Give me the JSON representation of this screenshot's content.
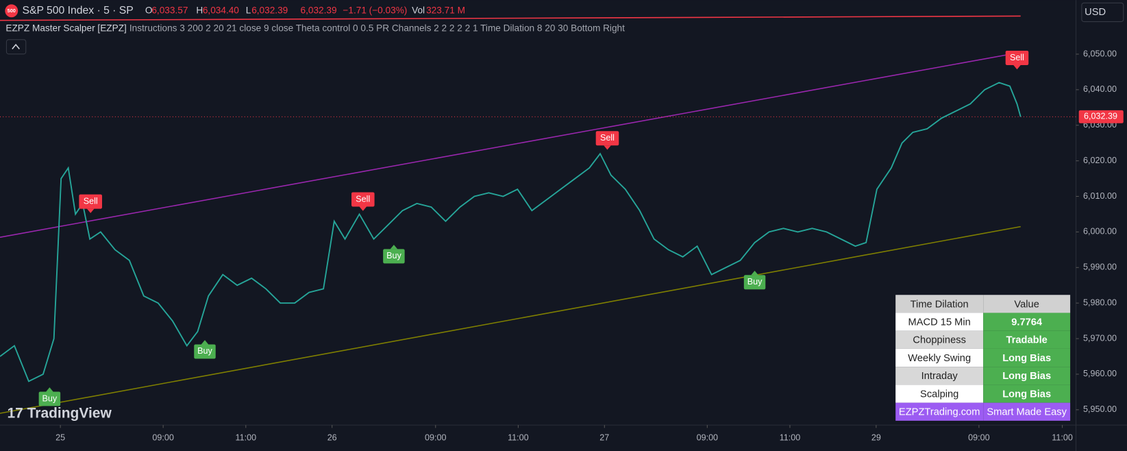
{
  "header": {
    "icon": "500",
    "symbol": "S&P 500 Index · 5 · SP",
    "ohlc": [
      {
        "key": "O",
        "value": "6,033.57"
      },
      {
        "key": "H",
        "value": "6,034.40"
      },
      {
        "key": "L",
        "value": "6,032.39"
      }
    ],
    "close": "6,032.39",
    "change": "−1.71 (−0.03%)",
    "vol_key": "Vol",
    "vol": "323.71 M",
    "indicator": "EZPZ Master Scalper [EZPZ]",
    "params": "Instructions 3 200 2 20 21 close 9 close Theta control 0 0.5 PR Channels 2 2 2 2 2 1 Time Dilation 8 20 30 Bottom Right",
    "currency": "USD",
    "logo": "TradingView"
  },
  "chart_data": {
    "type": "line",
    "x": [
      0,
      20,
      40,
      60,
      75,
      85,
      95,
      105,
      115,
      125,
      140,
      160,
      180,
      200,
      220,
      240,
      260,
      275,
      290,
      310,
      330,
      350,
      370,
      390,
      410,
      430,
      450,
      465,
      480,
      500,
      520,
      540,
      560,
      580,
      600,
      620,
      640,
      660,
      680,
      700,
      720,
      740,
      760,
      780,
      800,
      820,
      835,
      850,
      870,
      890,
      910,
      930,
      950,
      970,
      990,
      1010,
      1030,
      1050,
      1070,
      1090,
      1110,
      1130,
      1150,
      1170,
      1190,
      1205,
      1220,
      1240,
      1255,
      1270,
      1290,
      1310,
      1330,
      1350,
      1370,
      1390,
      1405,
      1415,
      1420
    ],
    "series": [
      {
        "color": "#26a69a",
        "values": [
          5965,
          5968,
          5958,
          5960,
          5970,
          6015,
          6018,
          6005,
          6008,
          5998,
          6000,
          5995,
          5992,
          5982,
          5980,
          5975,
          5968,
          5972,
          5982,
          5988,
          5985,
          5987,
          5984,
          5980,
          5980,
          5983,
          5984,
          6003,
          5998,
          6005,
          5998,
          6002,
          6006,
          6008,
          6007,
          6003,
          6007,
          6010,
          6011,
          6010,
          6012,
          6006,
          6009,
          6012,
          6015,
          6018,
          6022,
          6016,
          6012,
          6006,
          5998,
          5995,
          5993,
          5996,
          5988,
          5990,
          5992,
          5997,
          6000,
          6001,
          6000,
          6001,
          6000,
          5998,
          5996,
          5997,
          6012,
          6018,
          6025,
          6028,
          6029,
          6032,
          6034,
          6036,
          6040,
          6042,
          6041,
          6036,
          6032.39
        ]
      }
    ],
    "xlim": [
      0,
      1497
    ],
    "ylim": [
      5945.7,
      6065.2
    ],
    "xticks": [
      {
        "value": 84,
        "label": "25"
      },
      {
        "value": 227,
        "label": "09:00"
      },
      {
        "value": 342,
        "label": "11:00"
      },
      {
        "value": 462,
        "label": "26"
      },
      {
        "value": 606,
        "label": "09:00"
      },
      {
        "value": 721,
        "label": "11:00"
      },
      {
        "value": 841,
        "label": "27"
      },
      {
        "value": 984,
        "label": "09:00"
      },
      {
        "value": 1099,
        "label": "11:00"
      },
      {
        "value": 1219,
        "label": "29"
      },
      {
        "value": 1362,
        "label": "09:00"
      },
      {
        "value": 1478,
        "label": "11:00"
      }
    ],
    "yticks": [
      {
        "value": 5950,
        "label": "5,950.00"
      },
      {
        "value": 5960,
        "label": "5,960.00"
      },
      {
        "value": 5970,
        "label": "5,970.00"
      },
      {
        "value": 5980,
        "label": "5,980.00"
      },
      {
        "value": 5990,
        "label": "5,990.00"
      },
      {
        "value": 6000,
        "label": "6,000.00"
      },
      {
        "value": 6010,
        "label": "6,010.00"
      },
      {
        "value": 6020,
        "label": "6,020.00"
      },
      {
        "value": 6030,
        "label": "6,030.00"
      },
      {
        "value": 6040,
        "label": "6,040.00"
      },
      {
        "value": 6050,
        "label": "6,050.00"
      }
    ],
    "last_price": {
      "value": 6032.39,
      "label": "6,032.39"
    },
    "trendlines": [
      {
        "color": "#9c27b0",
        "x": [
          0,
          1420
        ],
        "y": [
          5998.5,
          6050.5
        ]
      },
      {
        "color": "#808000",
        "x": [
          0,
          1420
        ],
        "y": [
          5949,
          6001.5
        ]
      },
      {
        "color": "#f23645",
        "x": [
          0,
          1420
        ],
        "y": [
          6059.5,
          6060.7
        ]
      }
    ],
    "signals": [
      {
        "label": "Buy",
        "x": 69,
        "y": 5956.7
      },
      {
        "label": "Sell",
        "x": 126,
        "y": 6004.9
      },
      {
        "label": "Buy",
        "x": 285,
        "y": 5970
      },
      {
        "label": "Sell",
        "x": 505,
        "y": 6005.5
      },
      {
        "label": "Buy",
        "x": 548,
        "y": 5996.8
      },
      {
        "label": "Sell",
        "x": 845,
        "y": 6022.7
      },
      {
        "label": "Buy",
        "x": 1050,
        "y": 5989.5
      },
      {
        "label": "Sell",
        "x": 1415,
        "y": 6045.3
      }
    ]
  },
  "table": {
    "header": [
      "Time Dilation",
      "Value"
    ],
    "rows": [
      [
        "MACD 15 Min",
        "9.7764"
      ],
      [
        "Choppiness",
        "Tradable"
      ],
      [
        "Weekly Swing",
        "Long Bias"
      ],
      [
        "Intraday",
        "Long Bias"
      ],
      [
        "Scalping",
        "Long Bias"
      ]
    ],
    "footer": [
      "EZPZTrading.com",
      "Smart Made Easy"
    ]
  }
}
